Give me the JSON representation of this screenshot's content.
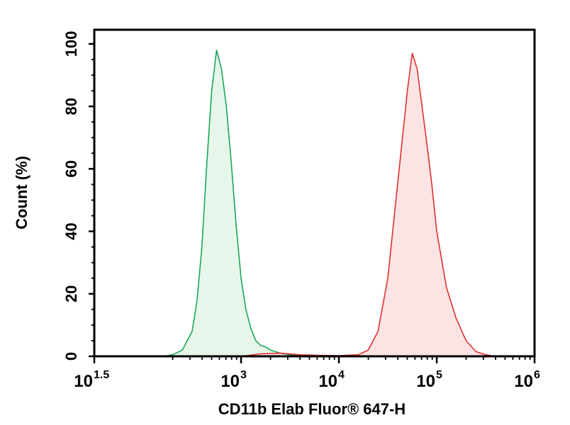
{
  "chart_data": {
    "type": "area",
    "xlabel": "CD11b Elab Fluor® 647-H",
    "ylabel": "Count (%)",
    "x_scale": "log10",
    "xlim": [
      31.6,
      1000000
    ],
    "ylim": [
      0,
      100
    ],
    "x_ticks": [
      {
        "base": "10",
        "exp": "1.5",
        "value": 31.6
      },
      {
        "base": "10",
        "exp": "3",
        "value": 1000
      },
      {
        "base": "10",
        "exp": "4",
        "value": 10000
      },
      {
        "base": "10",
        "exp": "5",
        "value": 100000
      },
      {
        "base": "10",
        "exp": "6",
        "value": 1000000
      }
    ],
    "y_ticks": [
      "0",
      "20",
      "40",
      "60",
      "80",
      "100"
    ],
    "series": [
      {
        "color": "#1aa85a",
        "fill": "#e6f6ea",
        "x": [
          158,
          200,
          251,
          316,
          355,
          398,
          447,
          501,
          562,
          631,
          708,
          794,
          891,
          1000,
          1122,
          1259,
          1413,
          1585,
          1778,
          1995,
          2239,
          2512,
          3162,
          3981,
          5012
        ],
        "y": [
          0,
          0.5,
          2,
          8,
          18,
          35,
          62,
          85,
          98,
          92,
          80,
          62,
          42,
          25,
          15,
          9,
          5,
          3.5,
          3,
          2,
          1.5,
          1,
          0.5,
          0.3,
          0
        ]
      },
      {
        "color": "#e03030",
        "fill": "#fde4e4",
        "x": [
          1000,
          1585,
          2512,
          3981,
          6310,
          10000,
          15849,
          19953,
          25119,
          31623,
          39811,
          50119,
          56234,
          63096,
          70795,
          79433,
          89125,
          100000,
          125893,
          158489,
          199526,
          251189,
          316228,
          398107
        ],
        "y": [
          0,
          0.8,
          1,
          0.5,
          0.3,
          0.2,
          0.5,
          2,
          8,
          25,
          55,
          85,
          97,
          92,
          80,
          68,
          55,
          40,
          22,
          12,
          5,
          1.5,
          0.5,
          0
        ]
      }
    ]
  }
}
